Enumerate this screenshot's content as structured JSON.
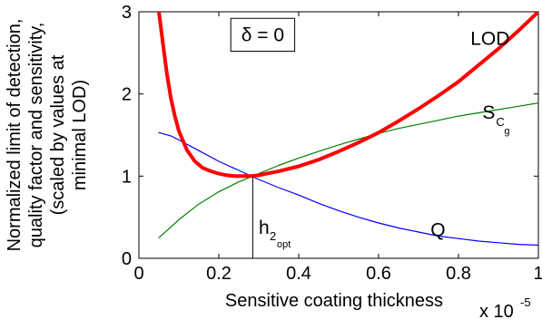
{
  "chart_data": {
    "type": "line",
    "xlabel": "Sensitive coating thickness",
    "x_multiplier": {
      "base": "x 10",
      "exponent": "-5"
    },
    "ylabel_lines": [
      "Normalized limit of detection,",
      "quality factor and sensitivity,",
      "(scaled by values at",
      "minimal LOD)"
    ],
    "xlim": [
      0,
      1
    ],
    "ylim": [
      0,
      3
    ],
    "x_ticks": [
      0,
      0.2,
      0.4,
      0.6,
      0.8,
      1
    ],
    "x_tick_labels": [
      "0",
      "0.2",
      "0.4",
      "0.6",
      "0.8",
      "1"
    ],
    "y_ticks": [
      0,
      1,
      2,
      3
    ],
    "y_tick_labels": [
      "0",
      "1",
      "2",
      "3"
    ],
    "grid": false,
    "series": [
      {
        "name": "LOD",
        "color": "#ff0000",
        "x": [
          0.05,
          0.06,
          0.07,
          0.08,
          0.09,
          0.1,
          0.12,
          0.14,
          0.16,
          0.18,
          0.2,
          0.22,
          0.24,
          0.26,
          0.28,
          0.3,
          0.32,
          0.35,
          0.4,
          0.45,
          0.5,
          0.55,
          0.6,
          0.65,
          0.7,
          0.75,
          0.8,
          0.85,
          0.9,
          0.95,
          1.0
        ],
        "values": [
          3.0,
          2.62,
          2.25,
          1.95,
          1.73,
          1.55,
          1.32,
          1.18,
          1.1,
          1.06,
          1.03,
          1.01,
          1.0,
          1.0,
          1.0,
          1.01,
          1.03,
          1.06,
          1.12,
          1.2,
          1.3,
          1.41,
          1.53,
          1.67,
          1.82,
          1.98,
          2.15,
          2.35,
          2.55,
          2.77,
          3.0
        ]
      },
      {
        "name": "S_Cg",
        "color": "#008000",
        "x": [
          0.05,
          0.08,
          0.1,
          0.15,
          0.2,
          0.25,
          0.3,
          0.35,
          0.4,
          0.45,
          0.5,
          0.55,
          0.6,
          0.65,
          0.7,
          0.75,
          0.8,
          0.85,
          0.9,
          0.95,
          1.0
        ],
        "values": [
          0.25,
          0.38,
          0.47,
          0.66,
          0.81,
          0.93,
          1.03,
          1.13,
          1.22,
          1.3,
          1.38,
          1.45,
          1.52,
          1.58,
          1.63,
          1.68,
          1.73,
          1.77,
          1.81,
          1.85,
          1.89
        ]
      },
      {
        "name": "Q",
        "color": "#0000ff",
        "x": [
          0.05,
          0.08,
          0.1,
          0.15,
          0.2,
          0.25,
          0.3,
          0.35,
          0.4,
          0.45,
          0.5,
          0.55,
          0.6,
          0.65,
          0.7,
          0.75,
          0.8,
          0.85,
          0.9,
          0.95,
          1.0
        ],
        "values": [
          1.53,
          1.49,
          1.44,
          1.31,
          1.18,
          1.07,
          0.96,
          0.86,
          0.77,
          0.67,
          0.58,
          0.5,
          0.43,
          0.37,
          0.32,
          0.27,
          0.24,
          0.21,
          0.19,
          0.17,
          0.16
        ]
      }
    ],
    "series_labels": [
      {
        "text": "LOD",
        "sub": "",
        "x": 0.83,
        "y": 2.6
      },
      {
        "text": "S",
        "sub": "C",
        "subsub": "g",
        "x": 0.86,
        "y": 1.7
      },
      {
        "text": "Q",
        "sub": "",
        "x": 0.73,
        "y": 0.27
      }
    ],
    "delta_box": {
      "text": "δ = 0",
      "x0": 0.23,
      "x1": 0.39,
      "y0": 2.52,
      "y1": 2.92
    },
    "optimum_marker": {
      "x": 0.285,
      "y": 1.0,
      "label": "h",
      "label_sub": "2",
      "label_subsub": "opt",
      "label_x": 0.3,
      "label_y": 0.3
    }
  }
}
